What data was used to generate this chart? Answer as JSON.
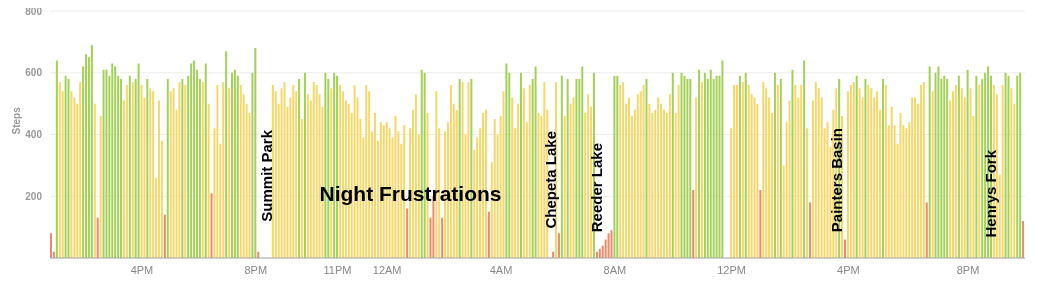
{
  "chart_data": {
    "type": "bar",
    "ylabel": "Steps",
    "ylim": [
      0,
      800
    ],
    "yticks": [
      200,
      400,
      600,
      800
    ],
    "grid": "y",
    "annotations": [
      "Summit Park",
      "Night Frustrations",
      "Chepeta Lake",
      "Reeder Lake",
      "Painters Basin",
      "Henrys Fork"
    ],
    "categories": [
      null,
      null,
      null,
      null,
      null,
      null,
      null,
      null,
      null,
      null,
      null,
      null,
      null,
      null,
      null,
      null,
      null,
      null,
      null,
      null,
      null,
      null,
      null,
      null,
      null,
      null,
      null,
      null,
      null,
      null,
      null,
      "4PM",
      null,
      null,
      null,
      null,
      null,
      null,
      null,
      null,
      null,
      null,
      null,
      null,
      null,
      null,
      null,
      null,
      null,
      null,
      null,
      null,
      null,
      null,
      null,
      null,
      null,
      null,
      null,
      null,
      null,
      null,
      null,
      null,
      null,
      null,
      null,
      null,
      null,
      null,
      "8PM",
      null,
      null,
      null,
      null,
      null,
      null,
      null,
      null,
      null,
      null,
      null,
      null,
      null,
      null,
      null,
      null,
      null,
      null,
      null,
      null,
      null,
      null,
      null,
      null,
      null,
      null,
      null,
      "11PM",
      null,
      null,
      null,
      null,
      null,
      null,
      null,
      null,
      null,
      null,
      null,
      null,
      null,
      null,
      null,
      null,
      "12AM",
      null,
      null,
      null,
      null,
      null,
      null,
      null,
      null,
      null,
      null,
      null,
      null,
      null,
      null,
      null,
      null,
      null,
      null,
      null,
      null,
      null,
      null,
      null,
      null,
      null,
      null,
      null,
      null,
      null,
      null,
      null,
      null,
      null,
      null,
      null,
      null,
      null,
      null,
      "4AM",
      null,
      null,
      null,
      null,
      null,
      null,
      null,
      null,
      null,
      null,
      null,
      null,
      null,
      null,
      null,
      null,
      null,
      null,
      null,
      null,
      null,
      null,
      null,
      null,
      null,
      null,
      null,
      null,
      null,
      null,
      null,
      null,
      null,
      null,
      null,
      null,
      null,
      null,
      "8AM",
      null,
      null,
      null,
      null,
      null,
      null,
      null,
      null,
      null,
      null,
      null,
      null,
      null,
      null,
      null,
      null,
      null,
      null,
      null,
      null,
      null,
      null,
      null,
      null,
      null,
      null,
      null,
      null,
      null,
      null,
      null,
      null,
      null,
      null,
      null,
      null,
      null,
      null,
      null,
      "12PM",
      null,
      null,
      null,
      null,
      null,
      null,
      null,
      null,
      null,
      null,
      null,
      null,
      null,
      null,
      null,
      null,
      null,
      null,
      null,
      null,
      null,
      null,
      null,
      null,
      null,
      null,
      null,
      null,
      null,
      null,
      null,
      null,
      null,
      null,
      null,
      null,
      null,
      null,
      null,
      "4PM",
      null,
      null,
      null,
      null,
      null,
      null,
      null,
      null,
      null,
      null,
      null,
      null,
      null,
      null,
      null,
      null,
      null,
      null,
      null,
      null,
      null,
      null,
      null,
      null,
      null,
      null,
      null,
      null,
      null,
      null,
      null,
      null,
      null,
      null,
      null,
      null,
      null,
      null,
      null,
      null,
      "8PM",
      null,
      null,
      null,
      null,
      null,
      null,
      null,
      null,
      null,
      null,
      null,
      null,
      null,
      null,
      null,
      null,
      null,
      null,
      null
    ],
    "values": [
      80,
      20,
      640,
      570,
      540,
      590,
      580,
      540,
      520,
      500,
      570,
      620,
      660,
      650,
      690,
      500,
      130,
      460,
      610,
      610,
      590,
      630,
      620,
      590,
      580,
      510,
      560,
      590,
      570,
      580,
      630,
      560,
      520,
      580,
      550,
      540,
      260,
      510,
      380,
      140,
      580,
      540,
      550,
      480,
      570,
      580,
      560,
      590,
      630,
      640,
      610,
      580,
      570,
      630,
      500,
      210,
      420,
      560,
      370,
      570,
      670,
      550,
      600,
      610,
      590,
      560,
      530,
      500,
      470,
      600,
      680,
      20,
      null,
      null,
      null,
      null,
      560,
      540,
      500,
      550,
      570,
      490,
      520,
      560,
      540,
      580,
      450,
      600,
      530,
      510,
      570,
      560,
      530,
      490,
      600,
      580,
      550,
      600,
      590,
      560,
      540,
      510,
      500,
      470,
      560,
      520,
      450,
      390,
      560,
      540,
      410,
      470,
      380,
      440,
      430,
      440,
      420,
      390,
      460,
      410,
      370,
      430,
      160,
      420,
      480,
      530,
      400,
      610,
      600,
      470,
      130,
      200,
      540,
      420,
      130,
      410,
      440,
      560,
      500,
      480,
      580,
      570,
      400,
      570,
      580,
      350,
      390,
      420,
      470,
      480,
      150,
      310,
      450,
      400,
      460,
      540,
      630,
      600,
      520,
      420,
      500,
      600,
      550,
      440,
      560,
      580,
      620,
      470,
      460,
      570,
      480,
      null,
      20,
      570,
      80,
      590,
      460,
      580,
      500,
      520,
      580,
      580,
      620,
      470,
      530,
      490,
      600,
      20,
      30,
      40,
      60,
      80,
      90,
      590,
      590,
      560,
      570,
      500,
      520,
      460,
      480,
      530,
      540,
      560,
      580,
      500,
      470,
      480,
      520,
      500,
      480,
      470,
      530,
      600,
      470,
      560,
      600,
      590,
      580,
      580,
      220,
      520,
      610,
      570,
      600,
      580,
      610,
      580,
      590,
      590,
      640,
      null,
      null,
      420,
      560,
      560,
      590,
      570,
      600,
      560,
      530,
      520,
      500,
      220,
      570,
      550,
      520,
      470,
      600,
      560,
      580,
      300,
      440,
      510,
      610,
      560,
      520,
      560,
      640,
      420,
      180,
      510,
      570,
      550,
      520,
      420,
      440,
      360,
      480,
      550,
      580,
      460,
      60,
      540,
      560,
      570,
      590,
      550,
      520,
      580,
      560,
      550,
      520,
      540,
      480,
      580,
      560,
      430,
      490,
      430,
      370,
      470,
      430,
      420,
      440,
      520,
      520,
      500,
      560,
      570,
      180,
      620,
      540,
      600,
      620,
      580,
      590,
      580,
      510,
      540,
      560,
      590,
      550,
      520,
      610,
      550,
      460,
      590,
      560,
      580,
      600,
      620,
      590,
      560,
      530,
      270,
      560,
      600,
      590,
      550,
      500,
      590,
      600,
      120
    ],
    "colors": [
      "#e98a6e",
      "#e98a6e",
      "#a3d158",
      "#f5d76a",
      "#f5d76a",
      "#a3d158",
      "#a3d158",
      "#f5d76a",
      "#f5d76a",
      "#f5d76a",
      "#f5d76a",
      "#a3d158",
      "#a3d158",
      "#a3d158",
      "#a3d158",
      "#f5d76a",
      "#e98a6e",
      "#f5d76a",
      "#a3d158",
      "#a3d158",
      "#a3d158",
      "#a3d158",
      "#a3d158",
      "#a3d158",
      "#a3d158",
      "#f5d76a",
      "#f5d76a",
      "#a3d158",
      "#f5d76a",
      "#a3d158",
      "#a3d158",
      "#f5d76a",
      "#f5d76a",
      "#a3d158",
      "#f5d76a",
      "#f5d76a",
      "#f5d76a",
      "#f5d76a",
      "#f5d76a",
      "#e98a6e",
      "#a3d158",
      "#f5d76a",
      "#f5d76a",
      "#f5d76a",
      "#f5d76a",
      "#a3d158",
      "#f5d76a",
      "#a3d158",
      "#a3d158",
      "#a3d158",
      "#a3d158",
      "#a3d158",
      "#f5d76a",
      "#a3d158",
      "#f5d76a",
      "#e98a6e",
      "#f5d76a",
      "#f5d76a",
      "#f5d76a",
      "#f5d76a",
      "#a3d158",
      "#f5d76a",
      "#a3d158",
      "#a3d158",
      "#a3d158",
      "#f5d76a",
      "#f5d76a",
      "#f5d76a",
      "#f5d76a",
      "#a3d158",
      "#a3d158",
      "#e98a6e",
      "#f5d76a",
      "#f5d76a",
      "#f5d76a",
      "#f5d76a",
      "#f5d76a",
      "#f5d76a",
      "#f5d76a",
      "#f5d76a",
      "#f5d76a",
      "#f5d76a",
      "#f5d76a",
      "#f5d76a",
      "#f5d76a",
      "#a3d158",
      "#f5d76a",
      "#a3d158",
      "#f5d76a",
      "#f5d76a",
      "#f5d76a",
      "#f5d76a",
      "#f5d76a",
      "#f5d76a",
      "#a3d158",
      "#a3d158",
      "#f5d76a",
      "#a3d158",
      "#a3d158",
      "#f5d76a",
      "#f5d76a",
      "#f5d76a",
      "#f5d76a",
      "#f5d76a",
      "#f5d76a",
      "#f5d76a",
      "#f5d76a",
      "#f5d76a",
      "#f5d76a",
      "#f5d76a",
      "#f5d76a",
      "#f5d76a",
      "#f5d76a",
      "#f5d76a",
      "#f5d76a",
      "#f5d76a",
      "#f5d76a",
      "#f5d76a",
      "#f5d76a",
      "#f5d76a",
      "#f5d76a",
      "#f5d76a",
      "#e98a6e",
      "#f5d76a",
      "#f5d76a",
      "#f5d76a",
      "#f5d76a",
      "#a3d158",
      "#a3d158",
      "#f5d76a",
      "#e98a6e",
      "#e98a6e",
      "#f5d76a",
      "#f5d76a",
      "#e98a6e",
      "#f5d76a",
      "#f5d76a",
      "#f5d76a",
      "#f5d76a",
      "#f5d76a",
      "#a3d158",
      "#f5d76a",
      "#f5d76a",
      "#f5d76a",
      "#a3d158",
      "#f5d76a",
      "#f5d76a",
      "#f5d76a",
      "#f5d76a",
      "#f5d76a",
      "#e98a6e",
      "#f5d76a",
      "#f5d76a",
      "#f5d76a",
      "#f5d76a",
      "#f5d76a",
      "#a3d158",
      "#a3d158",
      "#f5d76a",
      "#f5d76a",
      "#f5d76a",
      "#a3d158",
      "#f5d76a",
      "#f5d76a",
      "#f5d76a",
      "#a3d158",
      "#a3d158",
      "#f5d76a",
      "#f5d76a",
      "#f5d76a",
      "#f5d76a",
      "#f5d76a",
      "#e98a6e",
      "#f5d76a",
      "#e98a6e",
      "#a3d158",
      "#f5d76a",
      "#a3d158",
      "#f5d76a",
      "#f5d76a",
      "#a3d158",
      "#a3d158",
      "#a3d158",
      "#f5d76a",
      "#f5d76a",
      "#f5d76a",
      "#a3d158",
      "#e98a6e",
      "#e98a6e",
      "#e98a6e",
      "#e98a6e",
      "#e98a6e",
      "#e98a6e",
      "#a3d158",
      "#a3d158",
      "#f5d76a",
      "#f5d76a",
      "#f5d76a",
      "#f5d76a",
      "#f5d76a",
      "#f5d76a",
      "#f5d76a",
      "#f5d76a",
      "#f5d76a",
      "#a3d158",
      "#f5d76a",
      "#f5d76a",
      "#f5d76a",
      "#f5d76a",
      "#f5d76a",
      "#f5d76a",
      "#f5d76a",
      "#f5d76a",
      "#a3d158",
      "#f5d76a",
      "#f5d76a",
      "#a3d158",
      "#a3d158",
      "#a3d158",
      "#a3d158",
      "#e98a6e",
      "#f5d76a",
      "#a3d158",
      "#f5d76a",
      "#a3d158",
      "#a3d158",
      "#a3d158",
      "#a3d158",
      "#a3d158",
      "#a3d158",
      "#a3d158",
      "#f5d76a",
      "#f5d76a",
      "#f5d76a",
      "#f5d76a",
      "#f5d76a",
      "#a3d158",
      "#f5d76a",
      "#a3d158",
      "#f5d76a",
      "#f5d76a",
      "#f5d76a",
      "#f5d76a",
      "#e98a6e",
      "#f5d76a",
      "#f5d76a",
      "#f5d76a",
      "#f5d76a",
      "#a3d158",
      "#f5d76a",
      "#a3d158",
      "#f5d76a",
      "#f5d76a",
      "#f5d76a",
      "#a3d158",
      "#f5d76a",
      "#f5d76a",
      "#f5d76a",
      "#a3d158",
      "#f5d76a",
      "#e98a6e",
      "#f5d76a",
      "#f5d76a",
      "#f5d76a",
      "#f5d76a",
      "#f5d76a",
      "#f5d76a",
      "#f5d76a",
      "#f5d76a",
      "#f5d76a",
      "#a3d158",
      "#f5d76a",
      "#e98a6e",
      "#f5d76a",
      "#f5d76a",
      "#f5d76a",
      "#a3d158",
      "#f5d76a",
      "#f5d76a",
      "#a3d158",
      "#f5d76a",
      "#f5d76a",
      "#f5d76a",
      "#f5d76a",
      "#f5d76a",
      "#a3d158",
      "#f5d76a",
      "#f5d76a",
      "#f5d76a",
      "#f5d76a",
      "#f5d76a",
      "#f5d76a",
      "#f5d76a",
      "#f5d76a",
      "#f5d76a",
      "#f5d76a",
      "#f5d76a",
      "#f5d76a",
      "#f5d76a",
      "#f5d76a",
      "#e98a6e",
      "#a3d158",
      "#f5d76a",
      "#a3d158",
      "#a3d158",
      "#a3d158",
      "#a3d158",
      "#a3d158",
      "#f5d76a",
      "#f5d76a",
      "#f5d76a",
      "#a3d158",
      "#f5d76a",
      "#f5d76a",
      "#a3d158",
      "#f5d76a",
      "#f5d76a",
      "#a3d158",
      "#f5d76a",
      "#a3d158",
      "#a3d158",
      "#a3d158",
      "#a3d158",
      "#f5d76a",
      "#f5d76a",
      "#f5d76a",
      "#f5d76a",
      "#a3d158",
      "#a3d158",
      "#f5d76a",
      "#f5d76a",
      "#a3d158",
      "#a3d158",
      "#e98a6e"
    ]
  }
}
